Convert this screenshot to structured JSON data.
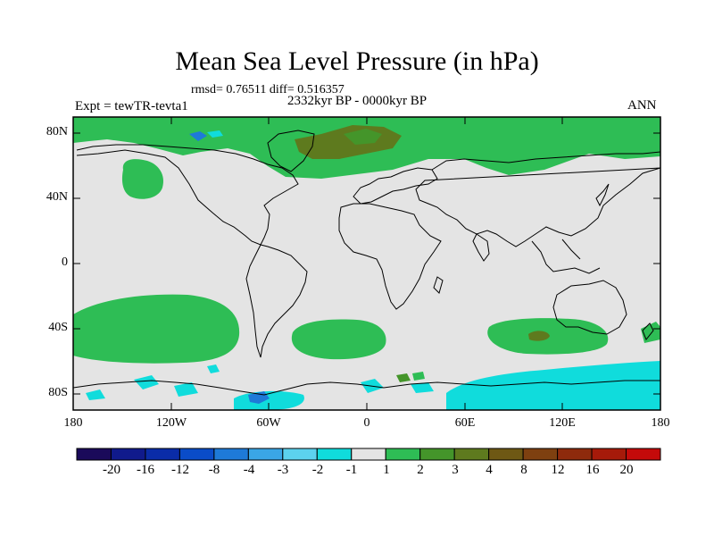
{
  "title": "Mean Sea Level Pressure (in hPa)",
  "stats": "rmsd= 0.76511 diff= 0.516357",
  "period": "2332kyr BP - 0000kyr BP",
  "experiment": "Expt = tewTR-tevta1",
  "season": "ANN",
  "lat_labels": [
    "80N",
    "40N",
    "0",
    "40S",
    "80S"
  ],
  "lon_labels": [
    "180",
    "120W",
    "60W",
    "0",
    "60E",
    "120E",
    "180"
  ],
  "colorbar": {
    "labels": [
      "-20",
      "-16",
      "-12",
      "-8",
      "-4",
      "-3",
      "-2",
      "-1",
      "1",
      "2",
      "3",
      "4",
      "8",
      "12",
      "16",
      "20"
    ],
    "colors": [
      "#1a0a5a",
      "#101a8c",
      "#0a2ca8",
      "#0a4cc8",
      "#1e7ad8",
      "#3aa6e6",
      "#5cd2ee",
      "#10dcdc",
      "#e4e4e4",
      "#2ebd55",
      "#44952a",
      "#5e7a1e",
      "#6e5814",
      "#7e4010",
      "#8e2a0c",
      "#a61a0a",
      "#c40a0a"
    ]
  },
  "map_colors": {
    "neutral": "#e4e4e4",
    "positive_1_2": "#2ebd55",
    "positive_2_3": "#44952a",
    "positive_3_4": "#5e7a1e",
    "negative_1_2": "#10dcdc",
    "negative_2_3": "#5cd2ee",
    "negative_4_8": "#1e7ad8"
  }
}
